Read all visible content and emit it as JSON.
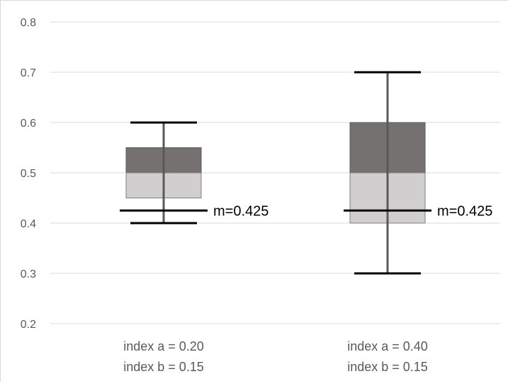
{
  "chart_data": {
    "type": "box",
    "ylim": [
      0.2,
      0.8
    ],
    "yticks": [
      "0.2",
      "0.3",
      "0.4",
      "0.5",
      "0.6",
      "0.7",
      "0.8"
    ],
    "grid": true,
    "categories": [
      [
        "index a = 0.20",
        "index b = 0.15"
      ],
      [
        "index a = 0.40",
        "index b = 0.15"
      ]
    ],
    "boxes": [
      {
        "min": 0.4,
        "q1": 0.45,
        "median": 0.5,
        "q3": 0.55,
        "max": 0.6,
        "mark": 0.425,
        "mark_label": "m=0.425"
      },
      {
        "min": 0.3,
        "q1": 0.4,
        "median": 0.5,
        "q3": 0.6,
        "max": 0.7,
        "mark": 0.425,
        "mark_label": "m=0.425"
      }
    ],
    "colors": {
      "upper_box": "#767171",
      "lower_box": "#d0cece",
      "whisker": "#595959",
      "cap": "#000000",
      "grid": "#d9d9d9"
    }
  }
}
